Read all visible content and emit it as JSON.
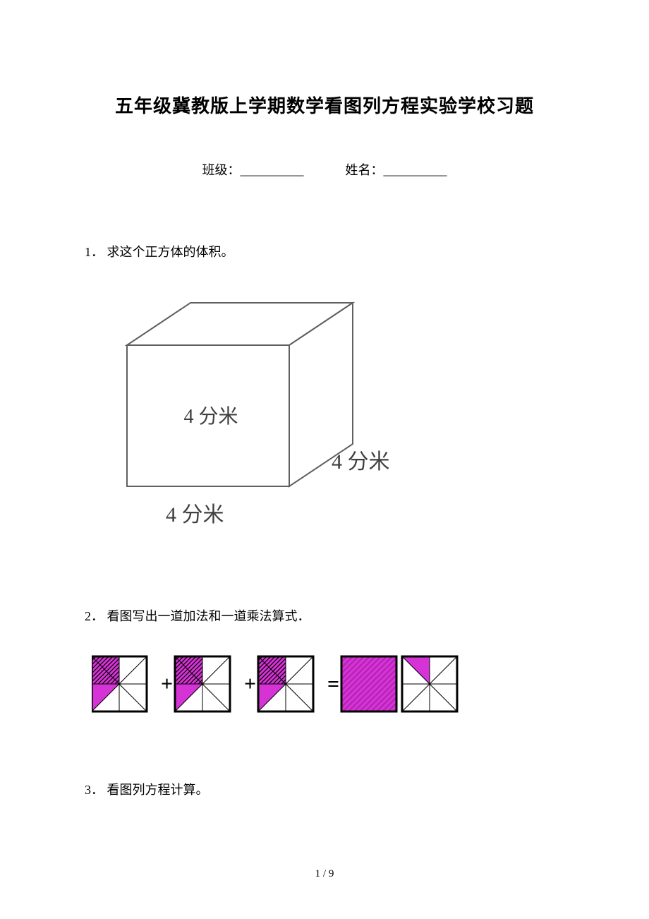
{
  "title": "五年级冀教版上学期数学看图列方程实验学校习题",
  "form": {
    "class_label": "班级：",
    "name_label": "姓名：",
    "blank": "__________"
  },
  "q1": {
    "num": "1．",
    "text": "求这个正方体的体积。",
    "cube": {
      "label_face": "4 分米",
      "label_right": "4 分米",
      "label_bottom": "4 分米",
      "stroke": "#606060",
      "text_color": "#404040",
      "font_family": "SimSun",
      "font_size_face": 28,
      "font_size_outer": 30
    }
  },
  "q2": {
    "num": "2．",
    "text": "看图写出一道加法和一道乘法算式．",
    "fig": {
      "tile_size": 78,
      "op_plus": "+",
      "op_eq": "=",
      "magenta": "#d633d6",
      "black": "#000000",
      "white": "#ffffff",
      "border_w": 3,
      "tiles": [
        {
          "type": "eighth_three"
        },
        {
          "type": "op",
          "v": "+"
        },
        {
          "type": "eighth_three"
        },
        {
          "type": "op",
          "v": "+"
        },
        {
          "type": "eighth_three"
        },
        {
          "type": "op",
          "v": "="
        },
        {
          "type": "full"
        },
        {
          "type": "eighth_one"
        }
      ]
    }
  },
  "q3": {
    "num": "3．",
    "text": "看图列方程计算。"
  },
  "footer": "1 / 9"
}
